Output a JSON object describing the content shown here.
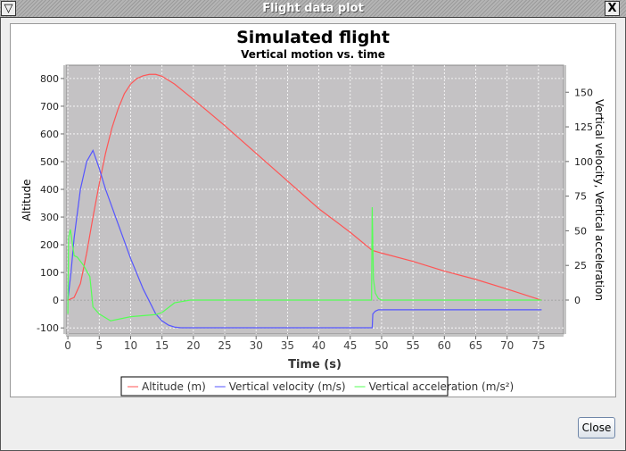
{
  "window": {
    "title": "Flight data plot",
    "menu_icon": "triangle-down-icon",
    "close_icon": "x-icon",
    "close_label": "Close"
  },
  "chart_data": {
    "type": "line",
    "title": "Simulated flight",
    "subtitle": "Vertical motion vs. time",
    "xlabel": "Time (s)",
    "ylabel_left": "Altitude",
    "ylabel_right": "Vertical velocity, Vertical acceleration",
    "xlim": [
      -0.3,
      79
    ],
    "ylim_left": [
      -122,
      848
    ],
    "ylim_right": [
      -24.5,
      169.5
    ],
    "xticks": [
      0,
      5,
      10,
      15,
      20,
      25,
      30,
      35,
      40,
      45,
      50,
      55,
      60,
      65,
      70,
      75
    ],
    "yticks_left": [
      -100,
      0,
      100,
      200,
      300,
      400,
      500,
      600,
      700,
      800
    ],
    "yticks_right": [
      0,
      25,
      50,
      75,
      100,
      125,
      150
    ],
    "grid": true,
    "legend_position": "bottom",
    "series": [
      {
        "name": "Altitude (m)",
        "axis": "left",
        "color": "#ff5555",
        "x": [
          0,
          1,
          2,
          3,
          4,
          5,
          6,
          7,
          8,
          9,
          10,
          11,
          12,
          13,
          14,
          15,
          17,
          20,
          25,
          30,
          35,
          40,
          45,
          48.5,
          50,
          55,
          60,
          65,
          70,
          75.5
        ],
        "y": [
          0,
          10,
          60,
          170,
          300,
          420,
          530,
          620,
          690,
          745,
          780,
          800,
          810,
          815,
          815,
          808,
          780,
          725,
          630,
          530,
          430,
          330,
          245,
          180,
          170,
          140,
          105,
          75,
          40,
          0
        ]
      },
      {
        "name": "Vertical velocity (m/s)",
        "axis": "right",
        "color": "#5555ff",
        "x": [
          0,
          0.5,
          1,
          2,
          3,
          4,
          5,
          6,
          8,
          10,
          12,
          14,
          15,
          16,
          17,
          18,
          48.5,
          48.6,
          49,
          49.5,
          75.5
        ],
        "y": [
          0,
          20,
          45,
          80,
          100,
          108,
          95,
          80,
          55,
          30,
          8,
          -10,
          -15,
          -18,
          -19.5,
          -20,
          -20,
          -10,
          -8,
          -7,
          -7
        ]
      },
      {
        "name": "Vertical acceleration (m/s²)",
        "axis": "right",
        "color": "#55ff55",
        "x": [
          0,
          0.1,
          0.4,
          1,
          1.5,
          2.5,
          3.5,
          4,
          5,
          6.8,
          10,
          14,
          15,
          17,
          19.5,
          48.4,
          48.5,
          48.7,
          49,
          49.5,
          50,
          75.5
        ],
        "y": [
          -10,
          45,
          51,
          32,
          31,
          25,
          17,
          -5,
          -10,
          -15,
          -12,
          -10.5,
          -9,
          -2,
          0,
          0,
          67,
          15,
          5,
          1,
          0,
          0
        ]
      }
    ]
  }
}
